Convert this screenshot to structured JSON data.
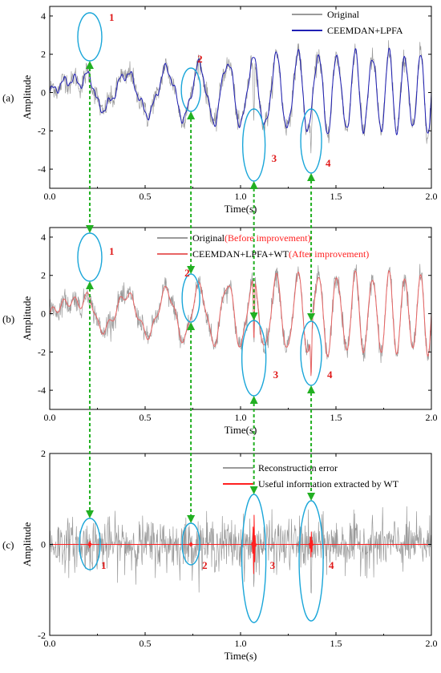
{
  "colors": {
    "original": "#9a9a9a",
    "ceemdan_lpfa": "#1f1fb4",
    "wt_line": "#e86464",
    "useful": "#ff2020",
    "ellipse": "#1aa6d9",
    "arrow": "#22b022",
    "marker": "#e01818"
  },
  "chart_data": [
    {
      "panel": "(a)",
      "type": "line",
      "xlabel": "Time(s)",
      "ylabel": "Amplitude",
      "xlim": [
        0,
        2.0
      ],
      "ylim": [
        -5,
        4.5
      ],
      "xticks": [
        "0.0",
        "0.5",
        "1.0",
        "1.5",
        "2.0"
      ],
      "yticks": [
        "-4",
        "-2",
        "0",
        "2",
        "4"
      ],
      "legend": [
        "Original",
        "CEEMDAN+LPFA"
      ],
      "series": [
        {
          "name": "Original",
          "role": "noisy"
        },
        {
          "name": "CEEMDAN+LPFA",
          "role": "smooth"
        }
      ],
      "markers": [
        {
          "label": "1",
          "x": 0.21,
          "y": 2.4
        },
        {
          "label": "2",
          "x": 0.74,
          "y": -0.2
        },
        {
          "label": "3",
          "x": 1.07,
          "y": -4.2
        },
        {
          "label": "4",
          "x": 1.37,
          "y": -4.0
        }
      ]
    },
    {
      "panel": "(b)",
      "type": "line",
      "xlabel": "Time(s)",
      "ylabel": "Amplitude",
      "xlim": [
        0,
        2.0
      ],
      "ylim": [
        -5,
        4.5
      ],
      "xticks": [
        "0.0",
        "0.5",
        "1.0",
        "1.5",
        "2.0"
      ],
      "yticks": [
        "-4",
        "-2",
        "0",
        "2",
        "4"
      ],
      "legend": [
        {
          "text": "Original",
          "suffix": "(Before improvement)"
        },
        {
          "text": "CEEMDAN+LPFA+WT",
          "suffix": "(After improvement)"
        }
      ],
      "series": [
        {
          "name": "Original",
          "role": "noisy"
        },
        {
          "name": "CEEMDAN+LPFA+WT",
          "role": "smooth"
        }
      ],
      "markers": [
        {
          "label": "1",
          "x": 0.21,
          "y": 2.4
        },
        {
          "label": "2",
          "x": 0.74,
          "y": -0.2
        },
        {
          "label": "3",
          "x": 1.07,
          "y": -4.2
        },
        {
          "label": "4",
          "x": 1.37,
          "y": -4.0
        }
      ]
    },
    {
      "panel": "(c)",
      "type": "line",
      "xlabel": "Time(s)",
      "ylabel": "Amplitude",
      "xlim": [
        0,
        2.0
      ],
      "ylim": [
        -2,
        2
      ],
      "xticks": [
        "0.0",
        "0.5",
        "1.0",
        "1.5",
        "2.0"
      ],
      "yticks": [
        "-2",
        "0",
        "2"
      ],
      "legend": [
        "Reconstruction error",
        "Useful information extracted by WT"
      ],
      "series": [
        {
          "name": "Reconstruction error",
          "role": "noise"
        },
        {
          "name": "Useful information extracted by WT",
          "role": "bursts"
        }
      ],
      "markers": [
        {
          "label": "1",
          "x": 0.21
        },
        {
          "label": "2",
          "x": 0.74
        },
        {
          "label": "3",
          "x": 1.07
        },
        {
          "label": "4",
          "x": 1.37
        }
      ]
    }
  ]
}
